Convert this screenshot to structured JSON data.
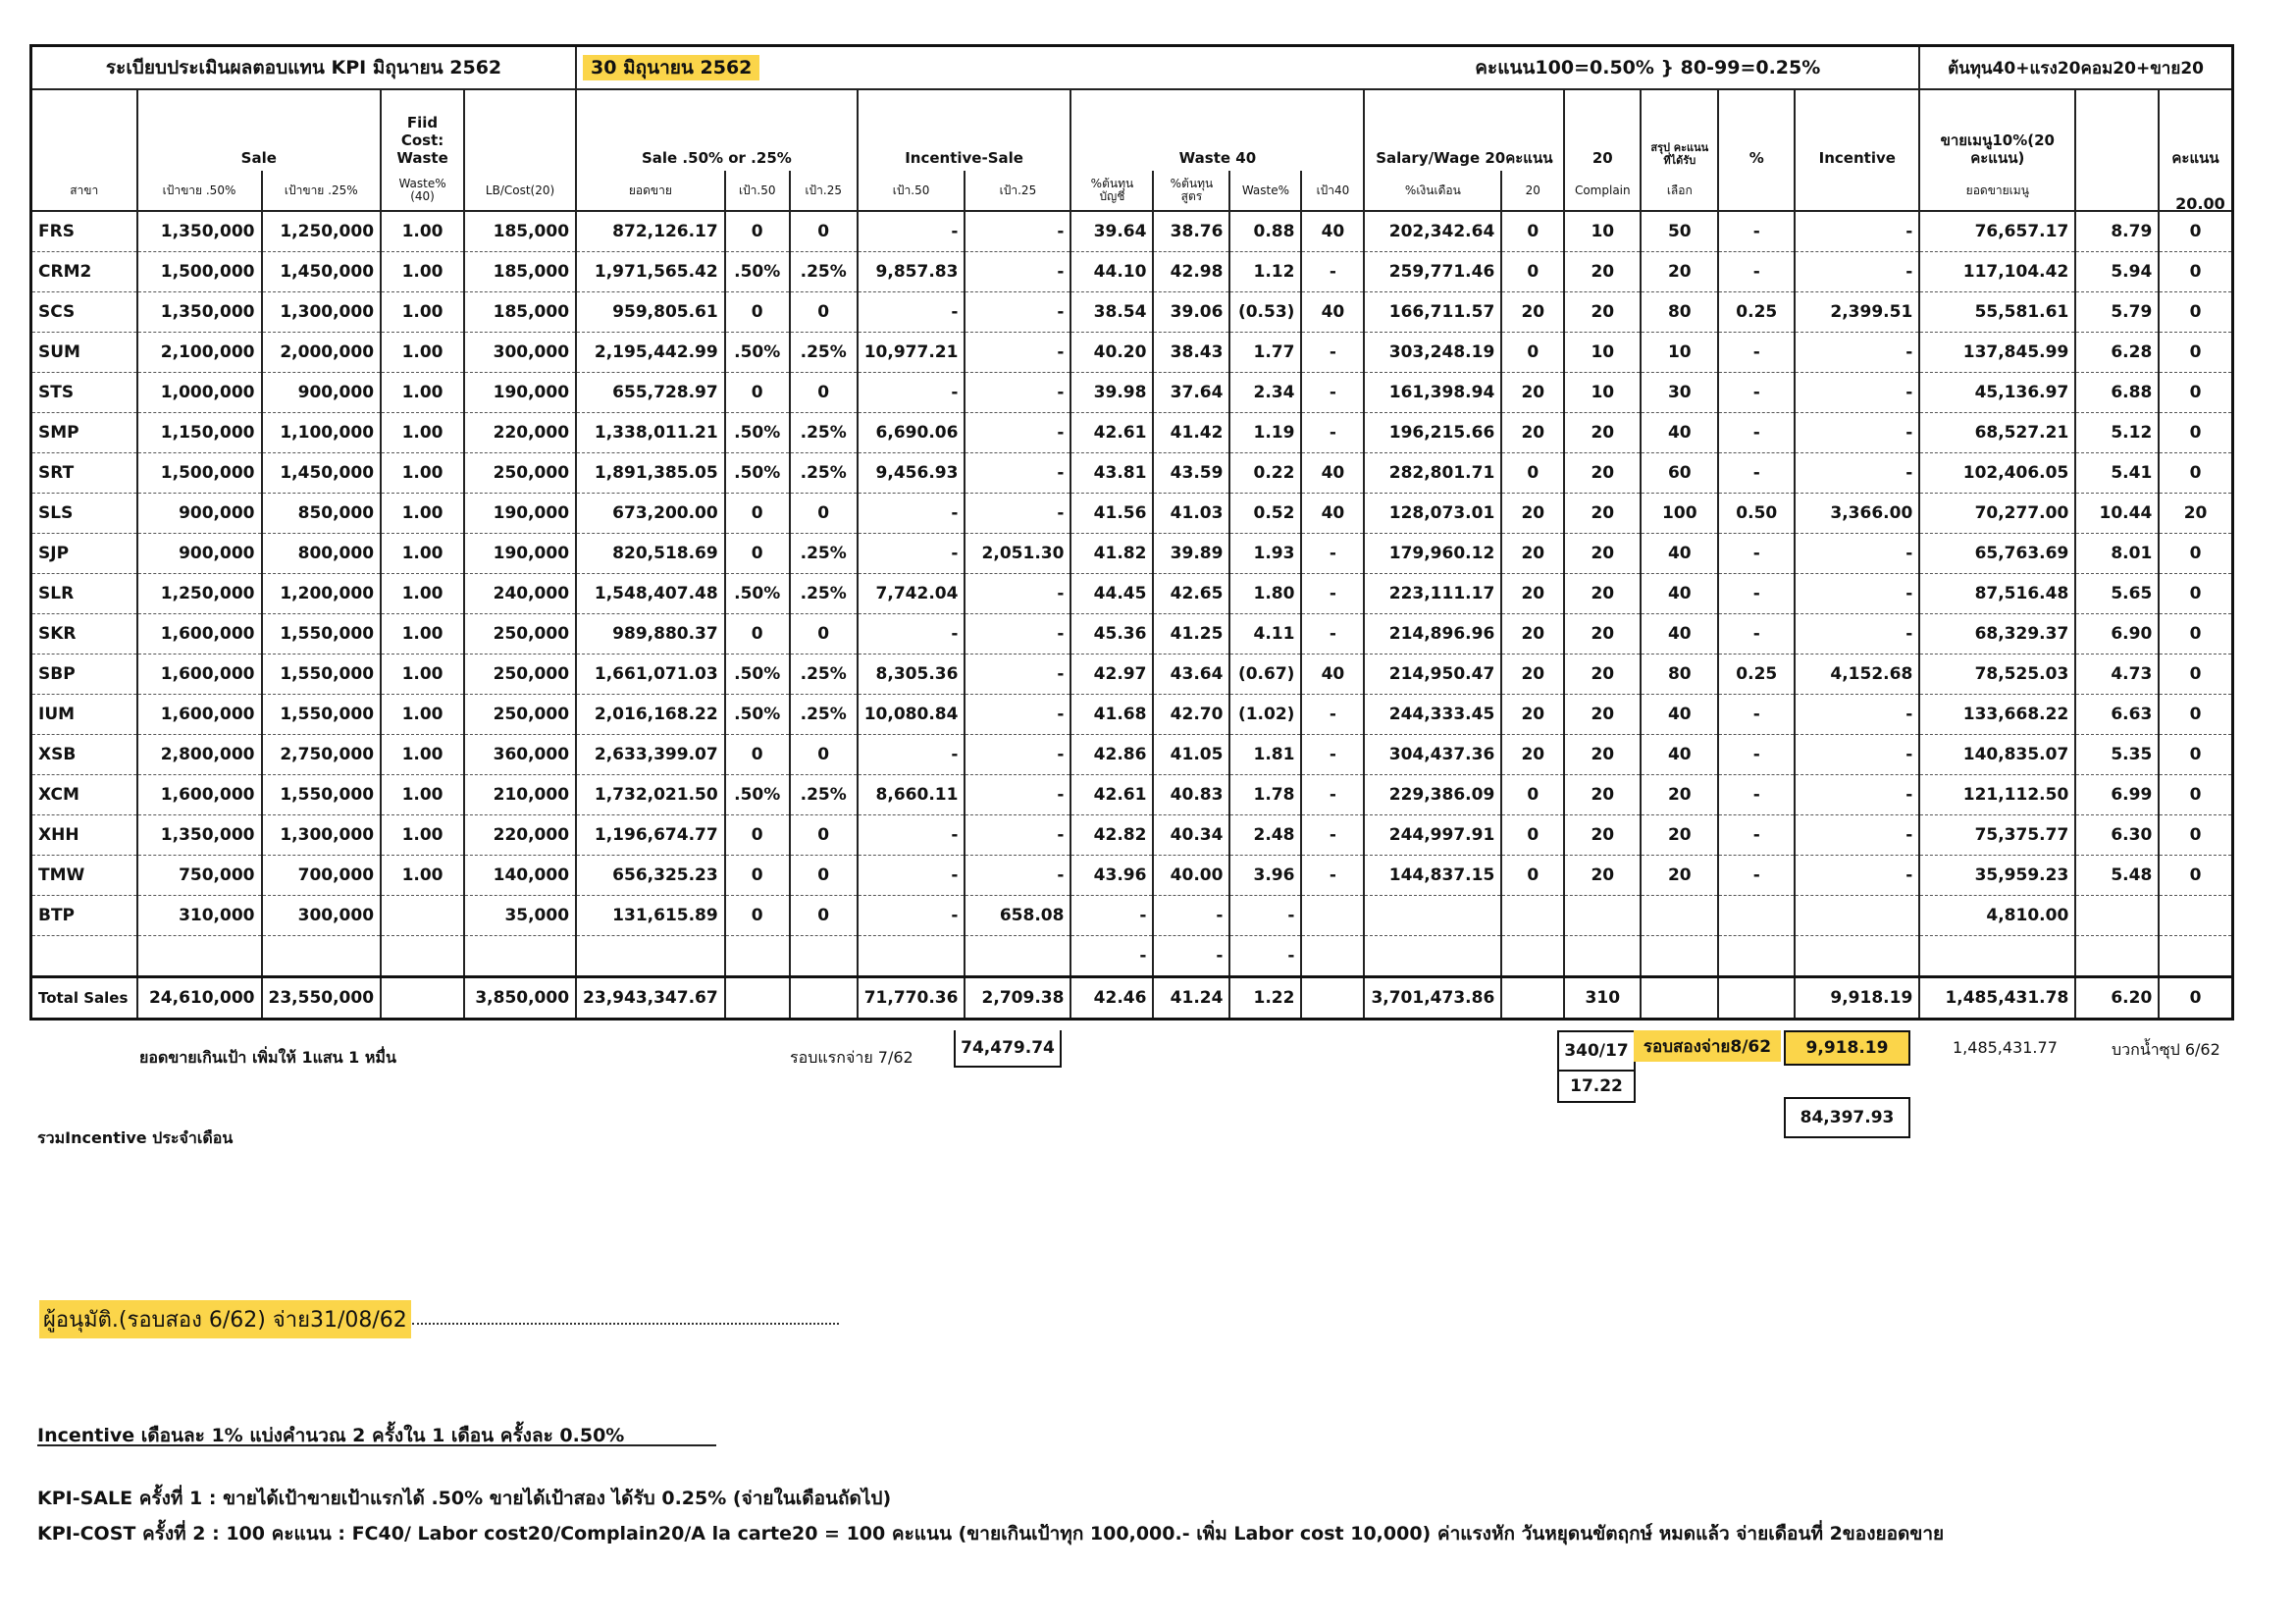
{
  "header": {
    "title": "ระเบียบประเมินผลตอบแทน KPI มิถุนายน 2562",
    "date": "30 มิถุนายน 2562",
    "score_rule": "คะแนน100=0.50% } 80-99=0.25%",
    "cost_formula": "ต้นทุน40+แรง20คอม20+ขาย20"
  },
  "table": {
    "groups": [
      "Sale",
      "Fiid Cost: Waste",
      "Sale .50% or .25%",
      "Incentive-Sale",
      "Waste 40",
      "Salary/Wage 20คะแนน",
      "20",
      "สรุป คะแนนที่ได้รับ",
      "%",
      "Incentive",
      "ขายเมนู10%(20 คะแนน)",
      "คะแนน"
    ],
    "columns": [
      "สาขา",
      "เป้าขาย .50%",
      "เป้าขาย .25%",
      "Waste%(40)",
      "LB/Cost(20)",
      "ยอดขาย",
      "เป้า.50",
      "เป้า.25",
      "เป้า.50",
      "เป้า.25",
      "%ต้นทุน บัญชี",
      "%ต้นทุน สูตร",
      "Waste%",
      "เป้า40",
      "%เงินเดือน",
      "20",
      "Complain",
      "เลือก",
      null,
      null,
      "ยอดขายเมนู",
      null,
      "20.00"
    ],
    "rows": [
      [
        "FRS",
        "1,350,000",
        "1,250,000",
        "1.00",
        "185,000",
        "872,126.17",
        "0",
        "0",
        "-",
        "-",
        "39.64",
        "38.76",
        "0.88",
        "40",
        "202,342.64",
        "0",
        "10",
        "50",
        "-",
        "-",
        "76,657.17",
        "8.79",
        "0"
      ],
      [
        "CRM2",
        "1,500,000",
        "1,450,000",
        "1.00",
        "185,000",
        "1,971,565.42",
        ".50%",
        ".25%",
        "9,857.83",
        "-",
        "44.10",
        "42.98",
        "1.12",
        "-",
        "259,771.46",
        "0",
        "20",
        "20",
        "-",
        "-",
        "117,104.42",
        "5.94",
        "0"
      ],
      [
        "SCS",
        "1,350,000",
        "1,300,000",
        "1.00",
        "185,000",
        "959,805.61",
        "0",
        "0",
        "-",
        "-",
        "38.54",
        "39.06",
        "(0.53)",
        "40",
        "166,711.57",
        "20",
        "20",
        "80",
        "0.25",
        "2,399.51",
        "55,581.61",
        "5.79",
        "0"
      ],
      [
        "SUM",
        "2,100,000",
        "2,000,000",
        "1.00",
        "300,000",
        "2,195,442.99",
        ".50%",
        ".25%",
        "10,977.21",
        "-",
        "40.20",
        "38.43",
        "1.77",
        "-",
        "303,248.19",
        "0",
        "10",
        "10",
        "-",
        "-",
        "137,845.99",
        "6.28",
        "0"
      ],
      [
        "STS",
        "1,000,000",
        "900,000",
        "1.00",
        "190,000",
        "655,728.97",
        "0",
        "0",
        "-",
        "-",
        "39.98",
        "37.64",
        "2.34",
        "-",
        "161,398.94",
        "20",
        "10",
        "30",
        "-",
        "-",
        "45,136.97",
        "6.88",
        "0"
      ],
      [
        "SMP",
        "1,150,000",
        "1,100,000",
        "1.00",
        "220,000",
        "1,338,011.21",
        ".50%",
        ".25%",
        "6,690.06",
        "-",
        "42.61",
        "41.42",
        "1.19",
        "-",
        "196,215.66",
        "20",
        "20",
        "40",
        "-",
        "-",
        "68,527.21",
        "5.12",
        "0"
      ],
      [
        "SRT",
        "1,500,000",
        "1,450,000",
        "1.00",
        "250,000",
        "1,891,385.05",
        ".50%",
        ".25%",
        "9,456.93",
        "-",
        "43.81",
        "43.59",
        "0.22",
        "40",
        "282,801.71",
        "0",
        "20",
        "60",
        "-",
        "-",
        "102,406.05",
        "5.41",
        "0"
      ],
      [
        "SLS",
        "900,000",
        "850,000",
        "1.00",
        "190,000",
        "673,200.00",
        "0",
        "0",
        "-",
        "-",
        "41.56",
        "41.03",
        "0.52",
        "40",
        "128,073.01",
        "20",
        "20",
        "100",
        "0.50",
        "3,366.00",
        "70,277.00",
        "10.44",
        "20"
      ],
      [
        "SJP",
        "900,000",
        "800,000",
        "1.00",
        "190,000",
        "820,518.69",
        "0",
        ".25%",
        "-",
        "2,051.30",
        "41.82",
        "39.89",
        "1.93",
        "-",
        "179,960.12",
        "20",
        "20",
        "40",
        "-",
        "-",
        "65,763.69",
        "8.01",
        "0"
      ],
      [
        "SLR",
        "1,250,000",
        "1,200,000",
        "1.00",
        "240,000",
        "1,548,407.48",
        ".50%",
        ".25%",
        "7,742.04",
        "-",
        "44.45",
        "42.65",
        "1.80",
        "-",
        "223,111.17",
        "20",
        "20",
        "40",
        "-",
        "-",
        "87,516.48",
        "5.65",
        "0"
      ],
      [
        "SKR",
        "1,600,000",
        "1,550,000",
        "1.00",
        "250,000",
        "989,880.37",
        "0",
        "0",
        "-",
        "-",
        "45.36",
        "41.25",
        "4.11",
        "-",
        "214,896.96",
        "20",
        "20",
        "40",
        "-",
        "-",
        "68,329.37",
        "6.90",
        "0"
      ],
      [
        "SBP",
        "1,600,000",
        "1,550,000",
        "1.00",
        "250,000",
        "1,661,071.03",
        ".50%",
        ".25%",
        "8,305.36",
        "-",
        "42.97",
        "43.64",
        "(0.67)",
        "40",
        "214,950.47",
        "20",
        "20",
        "80",
        "0.25",
        "4,152.68",
        "78,525.03",
        "4.73",
        "0"
      ],
      [
        "IUM",
        "1,600,000",
        "1,550,000",
        "1.00",
        "250,000",
        "2,016,168.22",
        ".50%",
        ".25%",
        "10,080.84",
        "-",
        "41.68",
        "42.70",
        "(1.02)",
        "-",
        "244,333.45",
        "20",
        "20",
        "40",
        "-",
        "-",
        "133,668.22",
        "6.63",
        "0"
      ],
      [
        "XSB",
        "2,800,000",
        "2,750,000",
        "1.00",
        "360,000",
        "2,633,399.07",
        "0",
        "0",
        "-",
        "-",
        "42.86",
        "41.05",
        "1.81",
        "-",
        "304,437.36",
        "20",
        "20",
        "40",
        "-",
        "-",
        "140,835.07",
        "5.35",
        "0"
      ],
      [
        "XCM",
        "1,600,000",
        "1,550,000",
        "1.00",
        "210,000",
        "1,732,021.50",
        ".50%",
        ".25%",
        "8,660.11",
        "-",
        "42.61",
        "40.83",
        "1.78",
        "-",
        "229,386.09",
        "0",
        "20",
        "20",
        "-",
        "-",
        "121,112.50",
        "6.99",
        "0"
      ],
      [
        "XHH",
        "1,350,000",
        "1,300,000",
        "1.00",
        "220,000",
        "1,196,674.77",
        "0",
        "0",
        "-",
        "-",
        "42.82",
        "40.34",
        "2.48",
        "-",
        "244,997.91",
        "0",
        "20",
        "20",
        "-",
        "-",
        "75,375.77",
        "6.30",
        "0"
      ],
      [
        "TMW",
        "750,000",
        "700,000",
        "1.00",
        "140,000",
        "656,325.23",
        "0",
        "0",
        "-",
        "-",
        "43.96",
        "40.00",
        "3.96",
        "-",
        "144,837.15",
        "0",
        "20",
        "20",
        "-",
        "-",
        "35,959.23",
        "5.48",
        "0"
      ],
      [
        "BTP",
        "310,000",
        "300,000",
        null,
        "35,000",
        "131,615.89",
        "0",
        "0",
        "-",
        "658.08",
        "-",
        "-",
        "-",
        null,
        null,
        null,
        null,
        null,
        null,
        null,
        "4,810.00",
        null,
        null
      ],
      [
        null,
        null,
        null,
        null,
        null,
        null,
        null,
        null,
        null,
        null,
        "-",
        "-",
        "-",
        null,
        null,
        null,
        null,
        null,
        null,
        null,
        null,
        null,
        null
      ],
      [
        "Total Sales",
        "24,610,000",
        "23,550,000",
        null,
        "3,850,000",
        "23,943,347.67",
        null,
        null,
        "71,770.36",
        "2,709.38",
        "42.46",
        "41.24",
        "1.22",
        null,
        "3,701,473.86",
        null,
        "310",
        null,
        null,
        "9,918.19",
        "1,485,431.78",
        "6.20",
        "0"
      ]
    ]
  },
  "footer": {
    "over_target": "ยอดขายเกินเป้า เพิ่มให้ 1แสน 1 หมื่น",
    "round1_label": "รอบแรกจ่าย 7/62",
    "round1_amount": "74,479.74",
    "score_total": "340/17",
    "score_avg": "17.22",
    "round2_label": "รอบสองจ่าย8/62",
    "round2_amount": "9,918.19",
    "menu_total": "1,485,431.77",
    "soup_note": "บวกน้ำซุป 6/62",
    "monthly_total": "84,397.93",
    "monthly_label": "รวมIncentive ประจำเดือน",
    "approver": "ผู้อนุมัติ.(รอบสอง 6/62) จ่าย31/08/62",
    "incentive_rule": "Incentive เดือนละ 1% แบ่งคำนวณ 2 ครั้งใน 1 เดือน ครั้งละ 0.50%",
    "kpi_sale": "KPI-SALE   ครั้งที่ 1 : ขายได้เป้าขายเป้าแรกได้ .50%  ขายได้เป้าสอง ได้รับ 0.25% (จ่ายในเดือนถัดไป)",
    "kpi_cost": "KPI-COST   ครั้งที่ 2 :  100 คะแนน   : FC40/ Labor cost20/Complain20/A la carte20  = 100 คะแนน (ขายเกินเป้าทุก 100,000.- เพิ่ม Labor cost 10,000)  ค่าแรงหัก วันหยุดนขัตฤกษ์ หมดแล้ว  จ่ายเดือนที่ 2ของยอดขาย"
  }
}
